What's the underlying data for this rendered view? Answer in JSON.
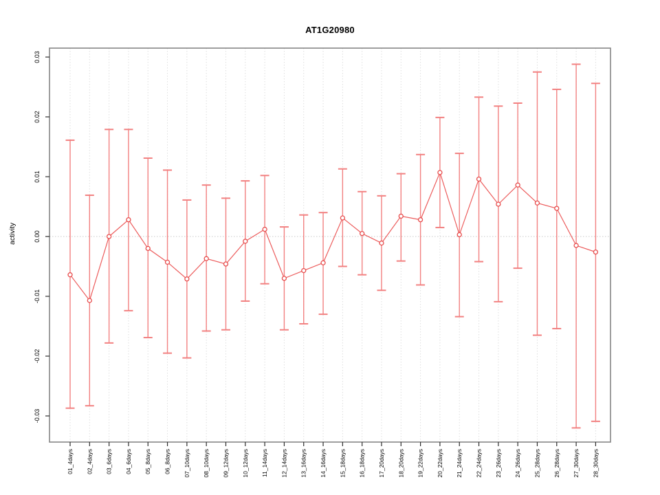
{
  "chart_data": {
    "type": "line",
    "subtype": "points-with-error-bars",
    "title": "AT1G20980",
    "xlabel": "",
    "ylabel": "activity",
    "grid": "vertical-dotted-per-category, horizontal-dotted-at-zero",
    "legend": "none",
    "yticks": [
      -0.03,
      -0.02,
      -0.01,
      0.0,
      0.01,
      0.02,
      0.03
    ],
    "ylim": [
      -0.0344,
      0.0315
    ],
    "categories": [
      "01_4days",
      "02_4days",
      "03_6days",
      "04_6days",
      "05_8days",
      "06_8days",
      "07_10days",
      "08_10days",
      "09_12days",
      "10_12days",
      "11_14days",
      "12_14days",
      "13_16days",
      "14_16days",
      "15_18days",
      "16_18days",
      "17_20days",
      "18_20days",
      "19_22days",
      "20_22days",
      "21_24days",
      "22_24days",
      "23_26days",
      "24_26days",
      "25_28days",
      "26_28days",
      "27_30days",
      "28_30days"
    ],
    "series": [
      {
        "name": "activity",
        "means": [
          -0.0064,
          -0.0107,
          0.0,
          0.0028,
          -0.002,
          -0.0043,
          -0.0071,
          -0.0037,
          -0.0046,
          -0.0008,
          0.0012,
          -0.007,
          -0.0057,
          -0.0044,
          0.0031,
          0.0005,
          -0.0011,
          0.0034,
          0.0028,
          0.0107,
          0.0003,
          0.0096,
          0.0054,
          0.0086,
          0.0056,
          0.0047,
          -0.0015,
          -0.0026
        ],
        "upper": [
          0.0161,
          0.0069,
          0.0179,
          0.0179,
          0.0131,
          0.0111,
          0.0061,
          0.0086,
          0.0064,
          0.0093,
          0.0102,
          0.0016,
          0.0036,
          0.004,
          0.0113,
          0.0075,
          0.0068,
          0.0105,
          0.0137,
          0.0199,
          0.0139,
          0.0233,
          0.0218,
          0.0223,
          0.0275,
          0.0246,
          0.0288,
          0.0256
        ],
        "lower": [
          -0.0287,
          -0.0283,
          -0.0178,
          -0.0124,
          -0.0169,
          -0.0195,
          -0.0203,
          -0.0158,
          -0.0156,
          -0.0108,
          -0.0079,
          -0.0156,
          -0.0146,
          -0.013,
          -0.005,
          -0.0064,
          -0.009,
          -0.0041,
          -0.0081,
          0.0015,
          -0.0134,
          -0.0042,
          -0.0109,
          -0.0053,
          -0.0165,
          -0.0154,
          -0.032,
          -0.0309
        ]
      }
    ],
    "colors": {
      "error_bar": "#F28080",
      "series_line": "#EC5B5B",
      "point_stroke": "#E74C4C",
      "point_fill": "#FFFFFF",
      "zero_line": "#C8C8C8",
      "gridline": "#DEDEDE",
      "plot_border": "#858585",
      "tick": "#2B2B2B",
      "text": "#000000",
      "background": "#FFFFFF"
    }
  }
}
